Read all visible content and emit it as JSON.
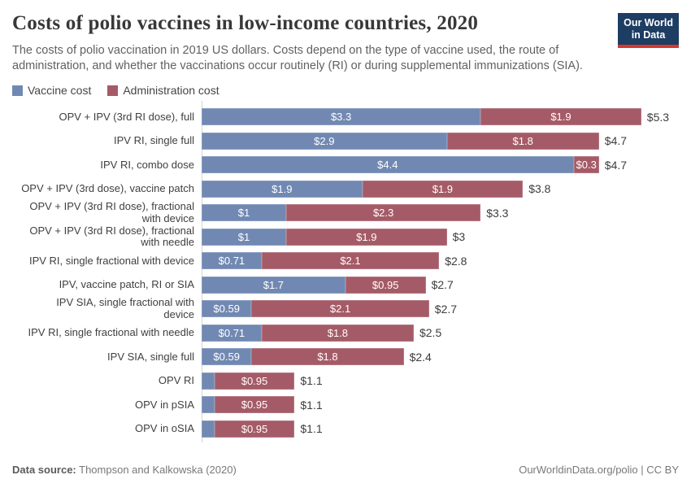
{
  "header": {
    "title": "Costs of polio vaccines in low-income countries, 2020",
    "subtitle": "The costs of polio vaccination in 2019 US dollars. Costs depend on the type of vaccine used, the route of administration, and whether the vaccinations occur routinely (RI) or during supplemental immunizations (SIA).",
    "logo": {
      "line1": "Our World",
      "line2": "in Data",
      "bg_color": "#1d3d63",
      "accent_color": "#d7382c"
    }
  },
  "legend": {
    "items": [
      {
        "label": "Vaccine cost",
        "color": "#7189b2"
      },
      {
        "label": "Administration cost",
        "color": "#a55b67"
      }
    ]
  },
  "chart_data": {
    "type": "bar",
    "orientation": "horizontal",
    "stacked": true,
    "value_unit": "2019 US$",
    "xlim": [
      0,
      5.5
    ],
    "grid": false,
    "legend_position": "top",
    "series": [
      "Vaccine cost",
      "Administration cost"
    ],
    "series_colors": {
      "vaccine": "#7189b2",
      "administration": "#a55b67"
    },
    "rows": [
      {
        "label_lines": [
          "OPV + IPV (3rd RI dose), full"
        ],
        "vaccine": 3.3,
        "vaccine_label": "$3.3",
        "administration": 1.9,
        "administration_label": "$1.9",
        "total": 5.3,
        "total_label": "$5.3"
      },
      {
        "label_lines": [
          "IPV RI, single full"
        ],
        "vaccine": 2.9,
        "vaccine_label": "$2.9",
        "administration": 1.8,
        "administration_label": "$1.8",
        "total": 4.7,
        "total_label": "$4.7"
      },
      {
        "label_lines": [
          "IPV RI, combo dose"
        ],
        "vaccine": 4.4,
        "vaccine_label": "$4.4",
        "administration": 0.3,
        "administration_label": "$0.3",
        "total": 4.7,
        "total_label": "$4.7"
      },
      {
        "label_lines": [
          "OPV + IPV (3rd dose), vaccine patch"
        ],
        "vaccine": 1.9,
        "vaccine_label": "$1.9",
        "administration": 1.9,
        "administration_label": "$1.9",
        "total": 3.8,
        "total_label": "$3.8"
      },
      {
        "label_lines": [
          "OPV + IPV (3rd RI dose), fractional",
          "with device"
        ],
        "vaccine": 1.0,
        "vaccine_label": "$1",
        "administration": 2.3,
        "administration_label": "$2.3",
        "total": 3.3,
        "total_label": "$3.3"
      },
      {
        "label_lines": [
          "OPV + IPV (3rd RI dose), fractional",
          "with needle"
        ],
        "vaccine": 1.0,
        "vaccine_label": "$1",
        "administration": 1.9,
        "administration_label": "$1.9",
        "total": 3.0,
        "total_label": "$3"
      },
      {
        "label_lines": [
          "IPV RI, single fractional with device"
        ],
        "vaccine": 0.71,
        "vaccine_label": "$0.71",
        "administration": 2.1,
        "administration_label": "$2.1",
        "total": 2.8,
        "total_label": "$2.8"
      },
      {
        "label_lines": [
          "IPV, vaccine patch, RI or SIA"
        ],
        "vaccine": 1.7,
        "vaccine_label": "$1.7",
        "administration": 0.95,
        "administration_label": "$0.95",
        "total": 2.7,
        "total_label": "$2.7"
      },
      {
        "label_lines": [
          "IPV SIA, single fractional with",
          "device"
        ],
        "vaccine": 0.59,
        "vaccine_label": "$0.59",
        "administration": 2.1,
        "administration_label": "$2.1",
        "total": 2.7,
        "total_label": "$2.7"
      },
      {
        "label_lines": [
          "IPV RI, single fractional with needle"
        ],
        "vaccine": 0.71,
        "vaccine_label": "$0.71",
        "administration": 1.8,
        "administration_label": "$1.8",
        "total": 2.5,
        "total_label": "$2.5"
      },
      {
        "label_lines": [
          "IPV SIA, single full"
        ],
        "vaccine": 0.59,
        "vaccine_label": "$0.59",
        "administration": 1.8,
        "administration_label": "$1.8",
        "total": 2.4,
        "total_label": "$2.4"
      },
      {
        "label_lines": [
          "OPV RI"
        ],
        "vaccine": 0.15,
        "vaccine_label": "",
        "administration": 0.95,
        "administration_label": "$0.95",
        "total": 1.1,
        "total_label": "$1.1"
      },
      {
        "label_lines": [
          "OPV in pSIA"
        ],
        "vaccine": 0.15,
        "vaccine_label": "",
        "administration": 0.95,
        "administration_label": "$0.95",
        "total": 1.1,
        "total_label": "$1.1"
      },
      {
        "label_lines": [
          "OPV in oSIA"
        ],
        "vaccine": 0.15,
        "vaccine_label": "",
        "administration": 0.95,
        "administration_label": "$0.95",
        "total": 1.1,
        "total_label": "$1.1"
      }
    ]
  },
  "footer": {
    "source_label": "Data source:",
    "source_value": " Thompson and Kalkowska (2020)",
    "credit": "OurWorldinData.org/polio | CC BY"
  }
}
